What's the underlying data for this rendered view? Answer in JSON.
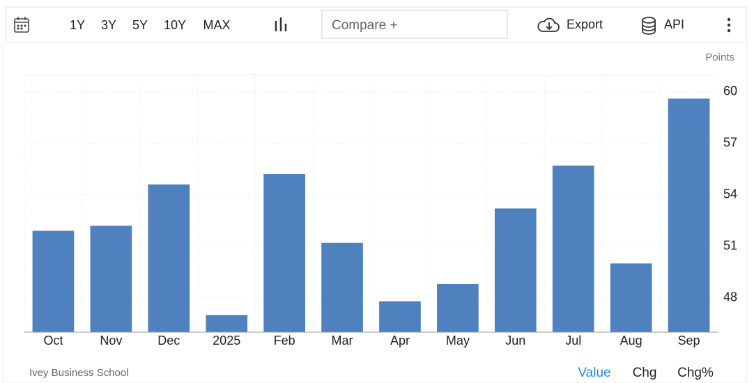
{
  "toolbar": {
    "ranges": [
      "1Y",
      "3Y",
      "5Y",
      "10Y",
      "MAX"
    ],
    "compare": "Compare +",
    "export": "Export",
    "api": "API"
  },
  "chart_data": {
    "type": "bar",
    "unit": "Points",
    "categories": [
      "Oct",
      "Nov",
      "Dec",
      "2025",
      "Feb",
      "Mar",
      "Apr",
      "May",
      "Jun",
      "Jul",
      "Aug",
      "Sep"
    ],
    "values": [
      51.9,
      52.2,
      54.6,
      47.0,
      55.2,
      51.2,
      47.8,
      48.8,
      53.2,
      55.7,
      50.0,
      59.6
    ],
    "color": "#4e81bd",
    "ylim": [
      46,
      61
    ],
    "yticks": [
      48,
      51,
      54,
      57,
      60
    ],
    "grid": true,
    "y_axis_side": "right"
  },
  "footer": {
    "source": "Ivey Business School",
    "tabs": [
      "Value",
      "Chg",
      "Chg%"
    ]
  }
}
